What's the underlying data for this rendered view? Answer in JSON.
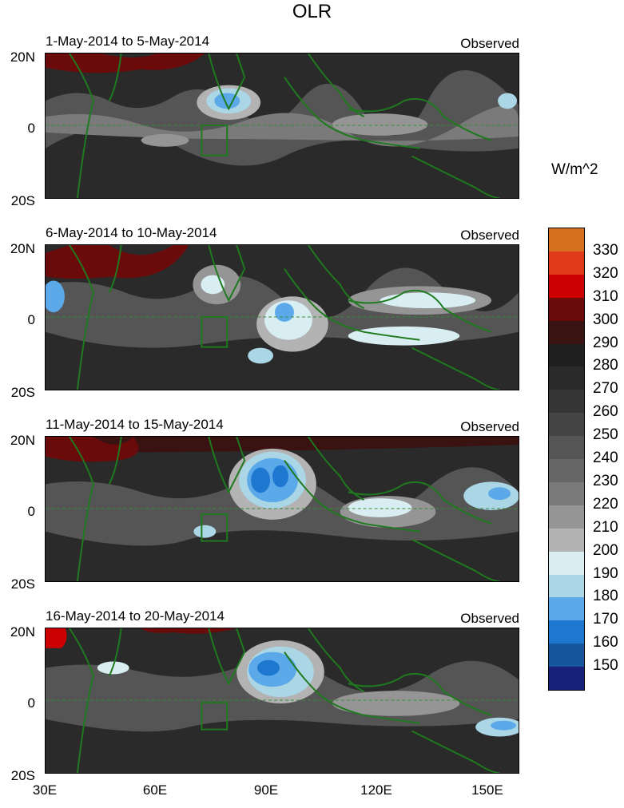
{
  "title": "OLR",
  "units": "W/m^2",
  "panels": [
    {
      "period": "1-May-2014 to 5-May-2014",
      "tag": "Observed"
    },
    {
      "period": "6-May-2014 to 10-May-2014",
      "tag": "Observed"
    },
    {
      "period": "11-May-2014 to 15-May-2014",
      "tag": "Observed"
    },
    {
      "period": "16-May-2014 to 20-May-2014",
      "tag": "Observed"
    }
  ],
  "lat_labels": [
    "20N",
    "0",
    "20S"
  ],
  "lon_labels": [
    "30E",
    "60E",
    "90E",
    "120E",
    "150E"
  ],
  "colorbar": {
    "labels": [
      "330",
      "320",
      "310",
      "300",
      "290",
      "280",
      "270",
      "260",
      "250",
      "240",
      "230",
      "220",
      "210",
      "200",
      "190",
      "180",
      "170",
      "160",
      "150"
    ],
    "colors": [
      "#d6701f",
      "#e0381a",
      "#cc0000",
      "#6b0a0a",
      "#3a1212",
      "#1f1f1f",
      "#2a2a2a",
      "#363636",
      "#444444",
      "#555555",
      "#666666",
      "#7a7a7a",
      "#959595",
      "#b3b3b3",
      "#d8eef2",
      "#aad6e6",
      "#5ba9e8",
      "#1f78d0",
      "#15579a",
      "#18217a"
    ]
  }
}
